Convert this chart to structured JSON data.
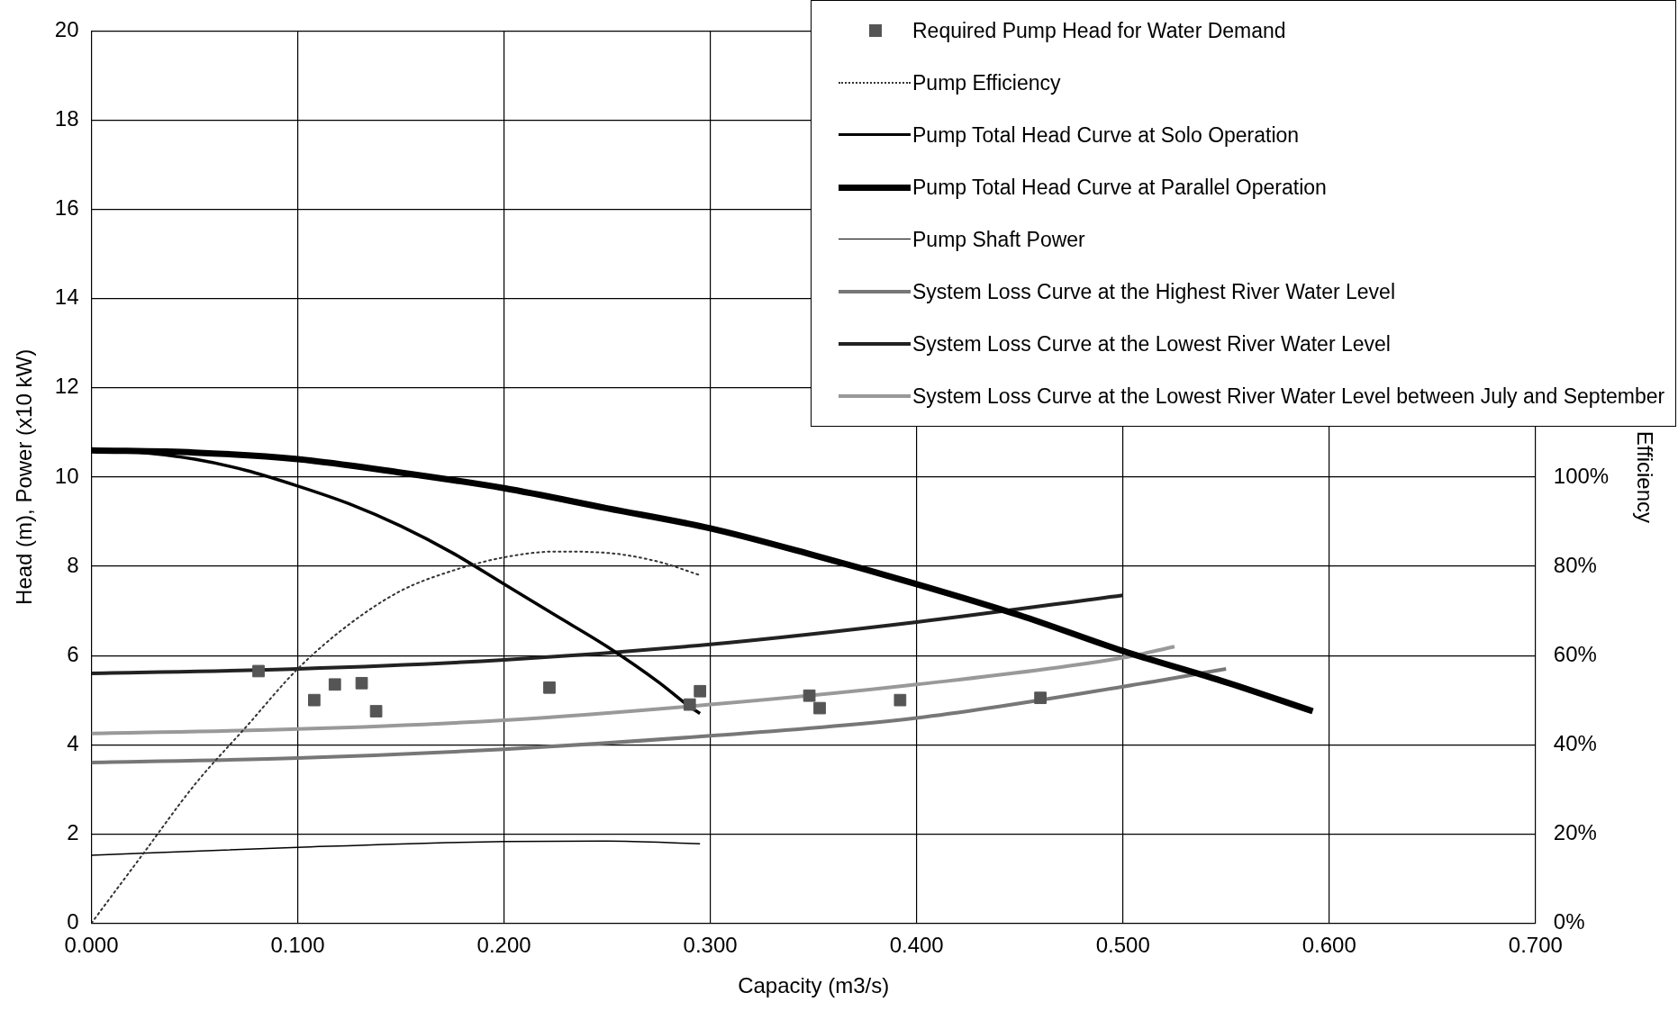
{
  "chart_data": {
    "type": "line",
    "xlabel": "Capacity (m3/s)",
    "ylabel": "Head (m), Power (x10 kW)",
    "y2label": "Efficiency",
    "xlim": [
      0,
      0.7
    ],
    "xticks": [
      {
        "value": 0,
        "label": "0.000"
      },
      {
        "value": 0.1,
        "label": "0.100"
      },
      {
        "value": 0.2,
        "label": "0.200"
      },
      {
        "value": 0.3,
        "label": "0.300"
      },
      {
        "value": 0.4,
        "label": "0.400"
      },
      {
        "value": 0.5,
        "label": "0.500"
      },
      {
        "value": 0.6,
        "label": "0.600"
      },
      {
        "value": 0.7,
        "label": "0.700"
      }
    ],
    "ylim": [
      0,
      20
    ],
    "yticks": [
      0,
      2,
      4,
      6,
      8,
      10,
      12,
      14,
      16,
      18,
      20
    ],
    "y2lim": [
      0,
      200
    ],
    "y2ticks": [
      {
        "value": 0,
        "label": "0%"
      },
      {
        "value": 20,
        "label": "20%"
      },
      {
        "value": 40,
        "label": "40%"
      },
      {
        "value": 60,
        "label": "60%"
      },
      {
        "value": 80,
        "label": "80%"
      },
      {
        "value": 100,
        "label": "100%"
      }
    ],
    "grid": true,
    "legend": "top right",
    "line_style": "solid",
    "series": [
      {
        "name": "Required Pump Head for Water Demand",
        "type": "scatter",
        "marker": "square",
        "color": "#555555",
        "x": [
          0.081,
          0.108,
          0.118,
          0.131,
          0.138,
          0.222,
          0.29,
          0.295,
          0.348,
          0.353,
          0.392,
          0.46
        ],
        "values": [
          5.65,
          5.0,
          5.35,
          5.38,
          4.75,
          5.28,
          4.9,
          5.2,
          5.1,
          4.82,
          5.0,
          5.05
        ]
      },
      {
        "name": "Pump Efficiency",
        "axis": "y2",
        "line_style": "dotted",
        "color": "#333333",
        "x": [
          0,
          0.025,
          0.05,
          0.075,
          0.1,
          0.125,
          0.15,
          0.175,
          0.2,
          0.225,
          0.25,
          0.275,
          0.295
        ],
        "values": [
          0,
          15.5,
          31,
          44,
          57,
          67,
          74.5,
          79,
          82,
          83.3,
          83,
          81,
          78
        ]
      },
      {
        "name": "Pump Total Head Curve at Solo Operation",
        "color": "#000000",
        "x": [
          0,
          0.025,
          0.05,
          0.075,
          0.1,
          0.125,
          0.15,
          0.175,
          0.2,
          0.225,
          0.25,
          0.275,
          0.29,
          0.295
        ],
        "values": [
          10.6,
          10.55,
          10.4,
          10.15,
          9.8,
          9.4,
          8.9,
          8.3,
          7.6,
          6.9,
          6.2,
          5.4,
          4.85,
          4.7
        ]
      },
      {
        "name": "Pump Total Head Curve at Parallel Operation",
        "color": "#000000",
        "x": [
          0,
          0.05,
          0.1,
          0.15,
          0.2,
          0.25,
          0.3,
          0.35,
          0.4,
          0.45,
          0.5,
          0.55,
          0.592
        ],
        "values": [
          10.6,
          10.55,
          10.4,
          10.1,
          9.75,
          9.3,
          8.85,
          8.25,
          7.6,
          6.9,
          6.1,
          5.4,
          4.75
        ]
      },
      {
        "name": "Pump Shaft Power",
        "color": "#000000",
        "x": [
          0,
          0.1,
          0.2,
          0.25,
          0.295
        ],
        "values": [
          1.52,
          1.7,
          1.83,
          1.84,
          1.78
        ]
      },
      {
        "name": "System Loss Curve at the Highest River Water Level",
        "color": "#777777",
        "x": [
          0,
          0.1,
          0.2,
          0.3,
          0.4,
          0.5,
          0.55
        ],
        "values": [
          3.6,
          3.7,
          3.9,
          4.2,
          4.6,
          5.3,
          5.7
        ]
      },
      {
        "name": "System Loss Curve at the Lowest River Water Level",
        "color": "#222222",
        "x": [
          0,
          0.1,
          0.2,
          0.3,
          0.4,
          0.5
        ],
        "values": [
          5.6,
          5.7,
          5.9,
          6.25,
          6.75,
          7.35
        ]
      },
      {
        "name": "System Loss Curve at the Lowest River Water Level between July and September",
        "color": "#999999",
        "x": [
          0,
          0.1,
          0.2,
          0.3,
          0.4,
          0.5,
          0.525
        ],
        "values": [
          4.25,
          4.35,
          4.55,
          4.9,
          5.35,
          5.95,
          6.2
        ]
      }
    ]
  }
}
